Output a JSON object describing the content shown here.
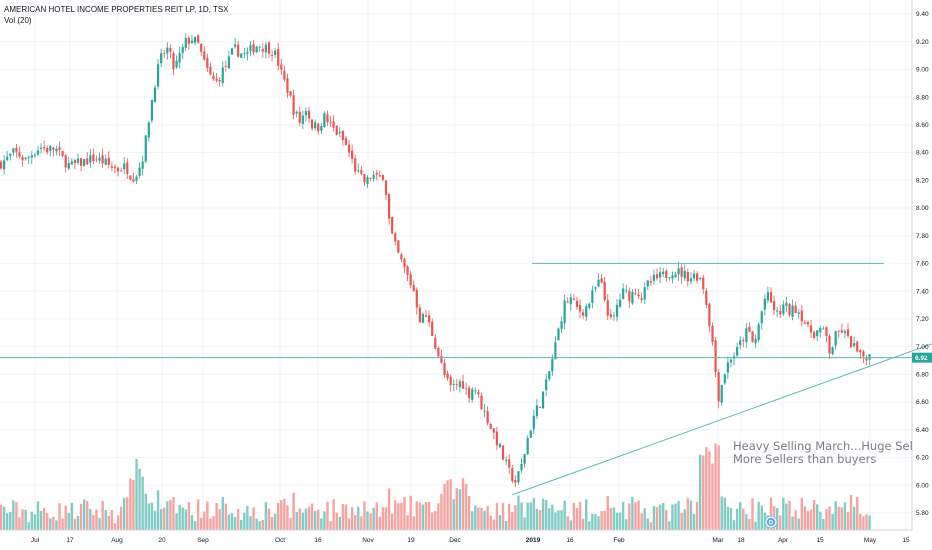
{
  "legend": {
    "title": "AMERICAN HOTEL INCOME PROPERTIES REIT LP, 1D, TSX",
    "volume_label": "Vol (20)"
  },
  "annotation": {
    "line1": "Heavy Selling March...Huge Selling",
    "line2": "More Sellers than buyers"
  },
  "event_marker": {
    "glyph": "D"
  },
  "colors": {
    "up": "#26a69a",
    "down": "#ef5350",
    "up_volume": "#80cbc4",
    "down_volume": "#f5a3a1",
    "line": "#5bbcb3",
    "grid": "#f0f3fa"
  },
  "chart_data": {
    "type": "candlestick",
    "ylim": [
      5.72,
      9.45
    ],
    "yticks": [
      "9.40",
      "9.20",
      "9.00",
      "8.80",
      "8.60",
      "8.40",
      "8.20",
      "8.00",
      "7.80",
      "7.60",
      "7.40",
      "7.20",
      "7.00",
      "6.80",
      "6.60",
      "6.40",
      "6.20",
      "6.00",
      "5.80"
    ],
    "xticks": [
      "Jul",
      "17",
      "Aug",
      "20",
      "Sep",
      "Oct",
      "16",
      "Nov",
      "19",
      "Dec",
      "2019",
      "16",
      "Feb",
      "Mar",
      "18",
      "Apr",
      "15",
      "May",
      "15"
    ],
    "last_price": {
      "value": 6.92,
      "label": "6.92"
    },
    "close_path": [
      [
        0,
        8.32
      ],
      [
        8,
        8.36
      ],
      [
        14,
        8.4
      ],
      [
        20,
        8.38
      ],
      [
        25,
        8.34
      ],
      [
        33,
        8.4
      ],
      [
        40,
        8.44
      ],
      [
        48,
        8.42
      ],
      [
        55,
        8.43
      ],
      [
        62,
        8.36
      ],
      [
        70,
        8.3
      ],
      [
        78,
        8.32
      ],
      [
        86,
        8.34
      ],
      [
        94,
        8.36
      ],
      [
        102,
        8.34
      ],
      [
        110,
        8.3
      ],
      [
        118,
        8.28
      ],
      [
        126,
        8.3
      ],
      [
        132,
        8.22
      ],
      [
        138,
        8.26
      ],
      [
        144,
        8.4
      ],
      [
        150,
        8.7
      ],
      [
        156,
        8.95
      ],
      [
        162,
        9.1
      ],
      [
        168,
        9.15
      ],
      [
        174,
        9.0
      ],
      [
        180,
        9.1
      ],
      [
        186,
        9.2
      ],
      [
        192,
        9.22
      ],
      [
        198,
        9.18
      ],
      [
        204,
        9.05
      ],
      [
        210,
        8.95
      ],
      [
        216,
        8.9
      ],
      [
        222,
        8.98
      ],
      [
        228,
        9.05
      ],
      [
        234,
        9.15
      ],
      [
        240,
        9.12
      ],
      [
        246,
        9.1
      ],
      [
        252,
        9.15
      ],
      [
        258,
        9.18
      ],
      [
        264,
        9.16
      ],
      [
        270,
        9.15
      ],
      [
        276,
        9.1
      ],
      [
        282,
        8.95
      ],
      [
        288,
        8.85
      ],
      [
        294,
        8.7
      ],
      [
        300,
        8.62
      ],
      [
        306,
        8.72
      ],
      [
        312,
        8.6
      ],
      [
        318,
        8.58
      ],
      [
        324,
        8.66
      ],
      [
        330,
        8.6
      ],
      [
        336,
        8.55
      ],
      [
        342,
        8.5
      ],
      [
        348,
        8.42
      ],
      [
        354,
        8.3
      ],
      [
        360,
        8.22
      ],
      [
        366,
        8.18
      ],
      [
        372,
        8.24
      ],
      [
        378,
        8.2
      ],
      [
        384,
        8.25
      ],
      [
        390,
        7.85
      ],
      [
        396,
        7.7
      ],
      [
        402,
        7.6
      ],
      [
        408,
        7.5
      ],
      [
        414,
        7.4
      ],
      [
        420,
        7.2
      ],
      [
        426,
        7.22
      ],
      [
        432,
        7.1
      ],
      [
        438,
        6.95
      ],
      [
        444,
        6.8
      ],
      [
        450,
        6.7
      ],
      [
        456,
        6.72
      ],
      [
        462,
        6.75
      ],
      [
        468,
        6.65
      ],
      [
        474,
        6.72
      ],
      [
        480,
        6.6
      ],
      [
        486,
        6.5
      ],
      [
        492,
        6.4
      ],
      [
        498,
        6.3
      ],
      [
        504,
        6.18
      ],
      [
        510,
        6.08
      ],
      [
        516,
        6.02
      ],
      [
        522,
        6.15
      ],
      [
        528,
        6.35
      ],
      [
        534,
        6.5
      ],
      [
        540,
        6.6
      ],
      [
        546,
        6.72
      ],
      [
        552,
        6.9
      ],
      [
        558,
        7.1
      ],
      [
        564,
        7.3
      ],
      [
        570,
        7.35
      ],
      [
        576,
        7.28
      ],
      [
        582,
        7.25
      ],
      [
        588,
        7.3
      ],
      [
        594,
        7.4
      ],
      [
        600,
        7.48
      ],
      [
        606,
        7.3
      ],
      [
        612,
        7.15
      ],
      [
        618,
        7.32
      ],
      [
        624,
        7.4
      ],
      [
        630,
        7.36
      ],
      [
        636,
        7.42
      ],
      [
        642,
        7.35
      ],
      [
        648,
        7.45
      ],
      [
        654,
        7.48
      ],
      [
        660,
        7.5
      ],
      [
        666,
        7.52
      ],
      [
        672,
        7.55
      ],
      [
        678,
        7.54
      ],
      [
        684,
        7.52
      ],
      [
        690,
        7.5
      ],
      [
        696,
        7.52
      ],
      [
        702,
        7.48
      ],
      [
        708,
        7.25
      ],
      [
        714,
        6.95
      ],
      [
        718,
        6.62
      ],
      [
        724,
        6.8
      ],
      [
        730,
        6.92
      ],
      [
        736,
        6.95
      ],
      [
        742,
        7.05
      ],
      [
        748,
        7.12
      ],
      [
        754,
        7.0
      ],
      [
        760,
        7.2
      ],
      [
        766,
        7.38
      ],
      [
        772,
        7.3
      ],
      [
        778,
        7.22
      ],
      [
        784,
        7.3
      ],
      [
        790,
        7.25
      ],
      [
        796,
        7.28
      ],
      [
        802,
        7.22
      ],
      [
        808,
        7.12
      ],
      [
        814,
        7.1
      ],
      [
        820,
        7.12
      ],
      [
        826,
        7.08
      ],
      [
        830,
        6.95
      ],
      [
        836,
        7.08
      ],
      [
        842,
        7.12
      ],
      [
        848,
        7.05
      ],
      [
        854,
        7.0
      ],
      [
        860,
        6.92
      ],
      [
        866,
        6.94
      ],
      [
        872,
        6.92
      ]
    ],
    "lines": [
      {
        "name": "resistance",
        "from": [
          "day",
          532,
          7.6
        ],
        "to": [
          "day",
          884,
          7.6
        ]
      },
      {
        "name": "last-price-line",
        "from": [
          "day",
          0,
          6.92
        ],
        "to": [
          "day",
          932,
          6.92
        ]
      },
      {
        "name": "trendline",
        "from": [
          "day",
          512,
          5.93
        ],
        "to": [
          "day",
          932,
          7.02
        ]
      }
    ]
  }
}
